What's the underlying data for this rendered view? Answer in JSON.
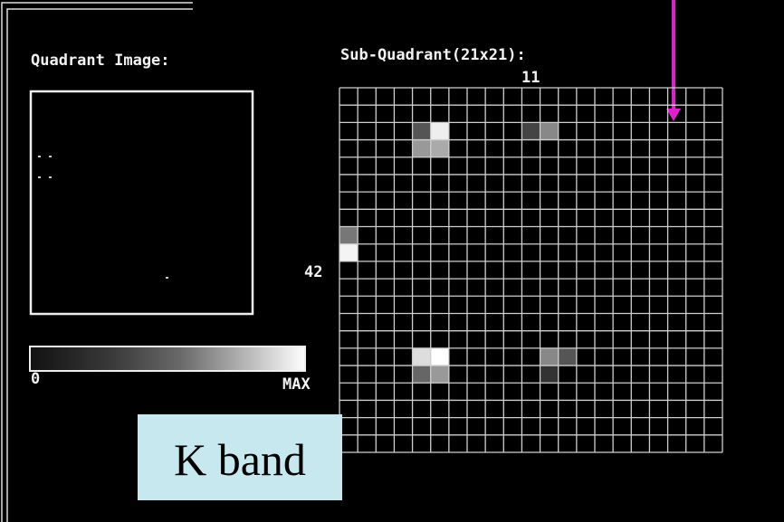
{
  "quadrant_panel": {
    "title": "Quadrant Image:",
    "scale_min": "0",
    "scale_max": "MAX"
  },
  "sub_quadrant_panel": {
    "title": "Sub-Quadrant(21x21):",
    "column_label": "11",
    "row_label": "42"
  },
  "caption": "K band"
}
